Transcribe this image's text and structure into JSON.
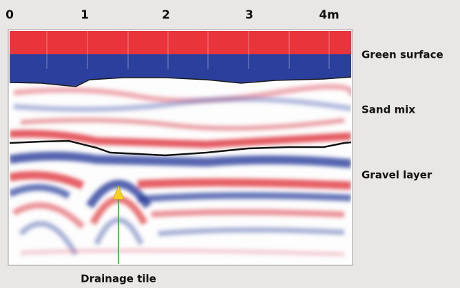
{
  "scale": {
    "labels": [
      "0",
      "1",
      "2",
      "3",
      "4m"
    ]
  },
  "layers": [
    "Green surface",
    "Sand mix",
    "Gravel layer"
  ],
  "annotation": "Drainage tile"
}
